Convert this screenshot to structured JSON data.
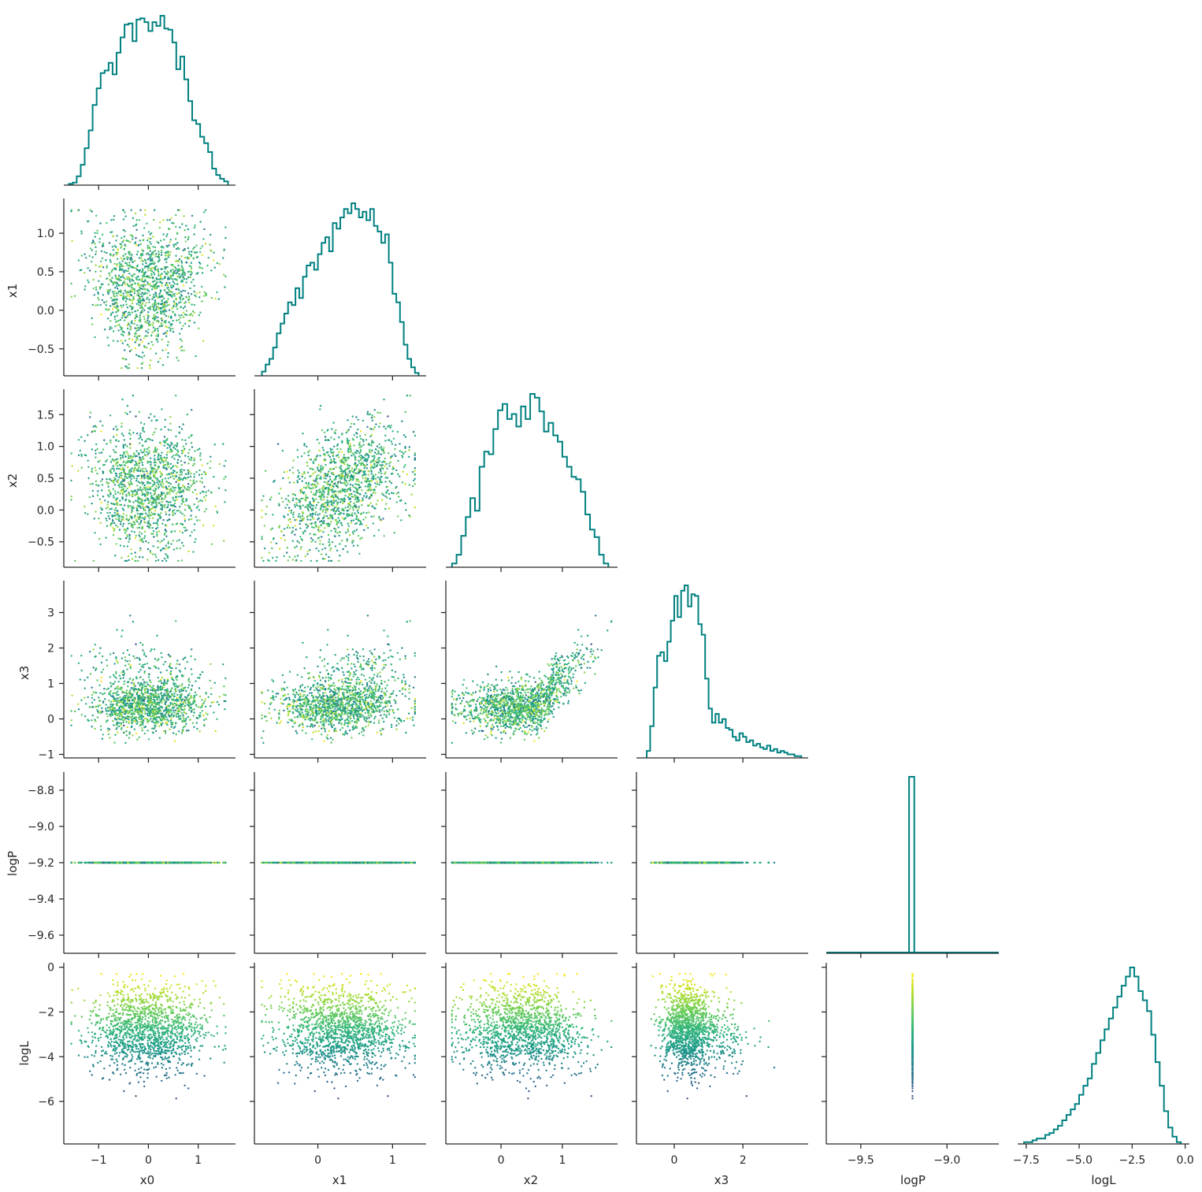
{
  "chart_data": {
    "type": "corner",
    "parameters": [
      "x0",
      "x1",
      "x2",
      "x3",
      "logP",
      "logL"
    ],
    "ranges": {
      "x0": [
        -1.7,
        1.75
      ],
      "x1": [
        -0.85,
        1.45
      ],
      "x2": [
        -0.9,
        1.9
      ],
      "x3": [
        -1.1,
        3.9
      ],
      "logP": [
        -9.7,
        -8.7
      ],
      "logL": [
        -7.9,
        0.2
      ]
    },
    "ticks": {
      "x0": [
        -1,
        0,
        1
      ],
      "x1": [
        -0.5,
        0.0,
        0.5,
        1.0
      ],
      "x1_x": [
        0,
        1
      ],
      "x2": [
        -0.5,
        0.0,
        0.5,
        1.0,
        1.5
      ],
      "x2_x": [
        0,
        1
      ],
      "x3": [
        -1,
        0,
        1,
        2,
        3
      ],
      "x3_x": [
        0,
        2
      ],
      "logP": [
        -9.6,
        -9.4,
        -9.2,
        -9.0,
        -8.8
      ],
      "logP_x": [
        -9.5,
        -9.0
      ],
      "logL": [
        -6,
        -4,
        -2,
        0
      ],
      "logL_x": [
        -7.5,
        -5.0,
        -2.5,
        0.0
      ]
    },
    "tick_labels": {
      "x0": [
        "−1",
        "0",
        "1"
      ],
      "x1": [
        "−0.5",
        "0.0",
        "0.5",
        "1.0"
      ],
      "x1_x": [
        "0",
        "1"
      ],
      "x2": [
        "−0.5",
        "0.0",
        "0.5",
        "1.0",
        "1.5"
      ],
      "x2_x": [
        "0",
        "1"
      ],
      "x3": [
        "−1",
        "0",
        "1",
        "2",
        "3"
      ],
      "x3_x": [
        "0",
        "2"
      ],
      "logP": [
        "−9.6",
        "−9.4",
        "−9.2",
        "−9.0",
        "−8.8"
      ],
      "logP_x": [
        "−9.5",
        "−9.0"
      ],
      "logL": [
        "−6",
        "−4",
        "−2",
        "0"
      ],
      "logL_x": [
        "−7.5",
        "−5.0",
        "−2.5",
        "0.0"
      ]
    },
    "histograms": {
      "x0": {
        "edges": [
          -1.6,
          -1.52,
          -1.44,
          -1.36,
          -1.28,
          -1.2,
          -1.12,
          -1.04,
          -0.96,
          -0.88,
          -0.8,
          -0.72,
          -0.64,
          -0.56,
          -0.48,
          -0.4,
          -0.32,
          -0.24,
          -0.16,
          -0.08,
          0.0,
          0.08,
          0.16,
          0.24,
          0.32,
          0.4,
          0.48,
          0.56,
          0.64,
          0.72,
          0.8,
          0.88,
          0.96,
          1.04,
          1.12,
          1.2,
          1.28,
          1.36,
          1.44,
          1.52,
          1.6
        ],
        "counts": [
          1,
          2,
          7,
          16,
          29,
          43,
          63,
          76,
          88,
          90,
          96,
          87,
          104,
          116,
          126,
          127,
          113,
          130,
          131,
          128,
          121,
          128,
          125,
          133,
          123,
          122,
          112,
          91,
          101,
          83,
          66,
          51,
          48,
          38,
          33,
          26,
          13,
          8,
          5,
          3
        ]
      },
      "x1": {
        "edges": [
          -0.75,
          -0.7,
          -0.65,
          -0.6,
          -0.55,
          -0.5,
          -0.45,
          -0.4,
          -0.35,
          -0.3,
          -0.25,
          -0.2,
          -0.15,
          -0.1,
          -0.05,
          0.0,
          0.05,
          0.1,
          0.15,
          0.2,
          0.25,
          0.3,
          0.35,
          0.4,
          0.45,
          0.5,
          0.55,
          0.6,
          0.65,
          0.7,
          0.75,
          0.8,
          0.85,
          0.9,
          0.95,
          1.0,
          1.05,
          1.1,
          1.15,
          1.2,
          1.25,
          1.3,
          1.35
        ],
        "counts": [
          3,
          8,
          12,
          20,
          30,
          37,
          44,
          52,
          50,
          62,
          55,
          70,
          78,
          80,
          75,
          86,
          94,
          98,
          88,
          108,
          104,
          112,
          118,
          115,
          122,
          118,
          112,
          116,
          110,
          118,
          106,
          102,
          94,
          100,
          80,
          58,
          52,
          38,
          22,
          12,
          6,
          2
        ]
      },
      "x2": {
        "edges": [
          -0.8,
          -0.725,
          -0.65,
          -0.575,
          -0.5,
          -0.425,
          -0.35,
          -0.275,
          -0.2,
          -0.125,
          -0.05,
          0.025,
          0.1,
          0.175,
          0.25,
          0.325,
          0.4,
          0.475,
          0.55,
          0.625,
          0.7,
          0.775,
          0.85,
          0.925,
          1.0,
          1.075,
          1.15,
          1.225,
          1.3,
          1.375,
          1.45,
          1.525,
          1.6,
          1.675,
          1.75
        ],
        "counts": [
          3,
          10,
          25,
          40,
          55,
          45,
          80,
          92,
          90,
          110,
          125,
          130,
          118,
          122,
          112,
          128,
          118,
          138,
          135,
          124,
          108,
          115,
          105,
          100,
          88,
          80,
          72,
          70,
          60,
          42,
          30,
          24,
          10,
          3
        ]
      },
      "x3": {
        "edges": [
          -0.8,
          -0.7,
          -0.6,
          -0.5,
          -0.4,
          -0.3,
          -0.2,
          -0.1,
          0.0,
          0.1,
          0.2,
          0.3,
          0.4,
          0.5,
          0.6,
          0.7,
          0.8,
          0.9,
          1.0,
          1.1,
          1.2,
          1.3,
          1.4,
          1.5,
          1.6,
          1.7,
          1.8,
          1.9,
          2.0,
          2.1,
          2.2,
          2.3,
          2.4,
          2.5,
          2.6,
          2.7,
          2.8,
          2.9,
          3.0,
          3.1,
          3.2,
          3.3,
          3.4,
          3.5,
          3.6,
          3.7
        ],
        "counts": [
          4,
          18,
          40,
          58,
          60,
          55,
          66,
          78,
          92,
          80,
          95,
          98,
          86,
          93,
          92,
          76,
          70,
          45,
          28,
          20,
          25,
          20,
          22,
          17,
          16,
          12,
          10,
          14,
          12,
          9,
          10,
          7,
          8,
          6,
          5,
          7,
          4,
          5,
          3,
          4,
          3,
          2,
          2,
          1,
          1
        ]
      },
      "logP": {
        "edges": [
          -9.22,
          -9.19
        ],
        "counts": [
          100
        ]
      },
      "logL": {
        "edges": [
          -7.6,
          -7.4,
          -7.2,
          -7.0,
          -6.8,
          -6.6,
          -6.4,
          -6.2,
          -6.0,
          -5.8,
          -5.6,
          -5.4,
          -5.2,
          -5.0,
          -4.8,
          -4.6,
          -4.4,
          -4.2,
          -4.0,
          -3.8,
          -3.6,
          -3.4,
          -3.2,
          -3.0,
          -2.8,
          -2.6,
          -2.4,
          -2.2,
          -2.0,
          -1.8,
          -1.6,
          -1.4,
          -1.2,
          -1.0,
          -0.8,
          -0.6,
          -0.4,
          -0.2
        ],
        "counts": [
          1,
          1,
          2,
          3,
          3,
          5,
          6,
          8,
          10,
          13,
          16,
          19,
          22,
          27,
          32,
          36,
          44,
          50,
          57,
          63,
          69,
          75,
          81,
          87,
          92,
          97,
          92,
          84,
          79,
          73,
          60,
          45,
          32,
          18,
          9,
          4,
          1
        ]
      }
    },
    "scatter": {
      "n_points": 4000,
      "color_by": "logL",
      "colormap": "viridis",
      "x0": [
        -1.42,
        -0.88,
        -0.31,
        0.12,
        0.64,
        1.03,
        -1.1,
        -0.52,
        0.28,
        0.91,
        1.32,
        -0.21,
        0.47,
        -0.73,
        0.05,
        1.18,
        -1.28,
        0.72,
        -0.04,
        0.36
      ],
      "x1": [
        1.12,
        0.78,
        0.31,
        -0.22,
        0.44,
        1.05,
        0.92,
        0.08,
        -0.51,
        0.63,
        1.18,
        0.15,
        0.27,
        0.58,
        -0.35,
        0.82,
        1.2,
        0.02,
        0.49,
        0.96
      ],
      "x2": [
        0.42,
        0.31,
        0.05,
        -0.41,
        0.58,
        1.22,
        0.71,
        -0.18,
        -0.62,
        0.89,
        1.61,
        0.22,
        0.36,
        0.47,
        -0.25,
        1.08,
        0.93,
        -0.05,
        0.55,
        1.35
      ],
      "x3": [
        0.51,
        0.22,
        -0.12,
        -0.48,
        0.44,
        1.71,
        0.63,
        -0.31,
        -0.67,
        0.98,
        3.05,
        0.08,
        0.31,
        0.39,
        -0.55,
        1.33,
        0.81,
        -0.22,
        0.52,
        2.42
      ],
      "logP": [
        -9.2,
        -9.2,
        -9.2,
        -9.2,
        -9.2,
        -9.2,
        -9.2,
        -9.2,
        -9.2,
        -9.2,
        -9.2,
        -9.2,
        -9.2,
        -9.2,
        -9.2,
        -9.2,
        -9.2,
        -9.2,
        -9.2,
        -9.2
      ],
      "logL": [
        -3.1,
        -2.4,
        -1.6,
        -2.9,
        -2.2,
        -3.8,
        -3.3,
        -2.0,
        -3.5,
        -2.7,
        -4.6,
        -1.2,
        -2.5,
        -2.1,
        -4.1,
        -3.0,
        -4.4,
        -1.9,
        -0.9,
        -3.6
      ]
    },
    "hist_color": "#008080",
    "xlabels": [
      "x0",
      "x1",
      "x2",
      "x3",
      "logP",
      "logL"
    ],
    "ylabels": [
      "x1",
      "x2",
      "x3",
      "logP",
      "logL"
    ]
  },
  "axis_labels": {
    "x0": "x0",
    "x1": "x1",
    "x2": "x2",
    "x3": "x3",
    "logP": "logP",
    "logL": "logL"
  }
}
